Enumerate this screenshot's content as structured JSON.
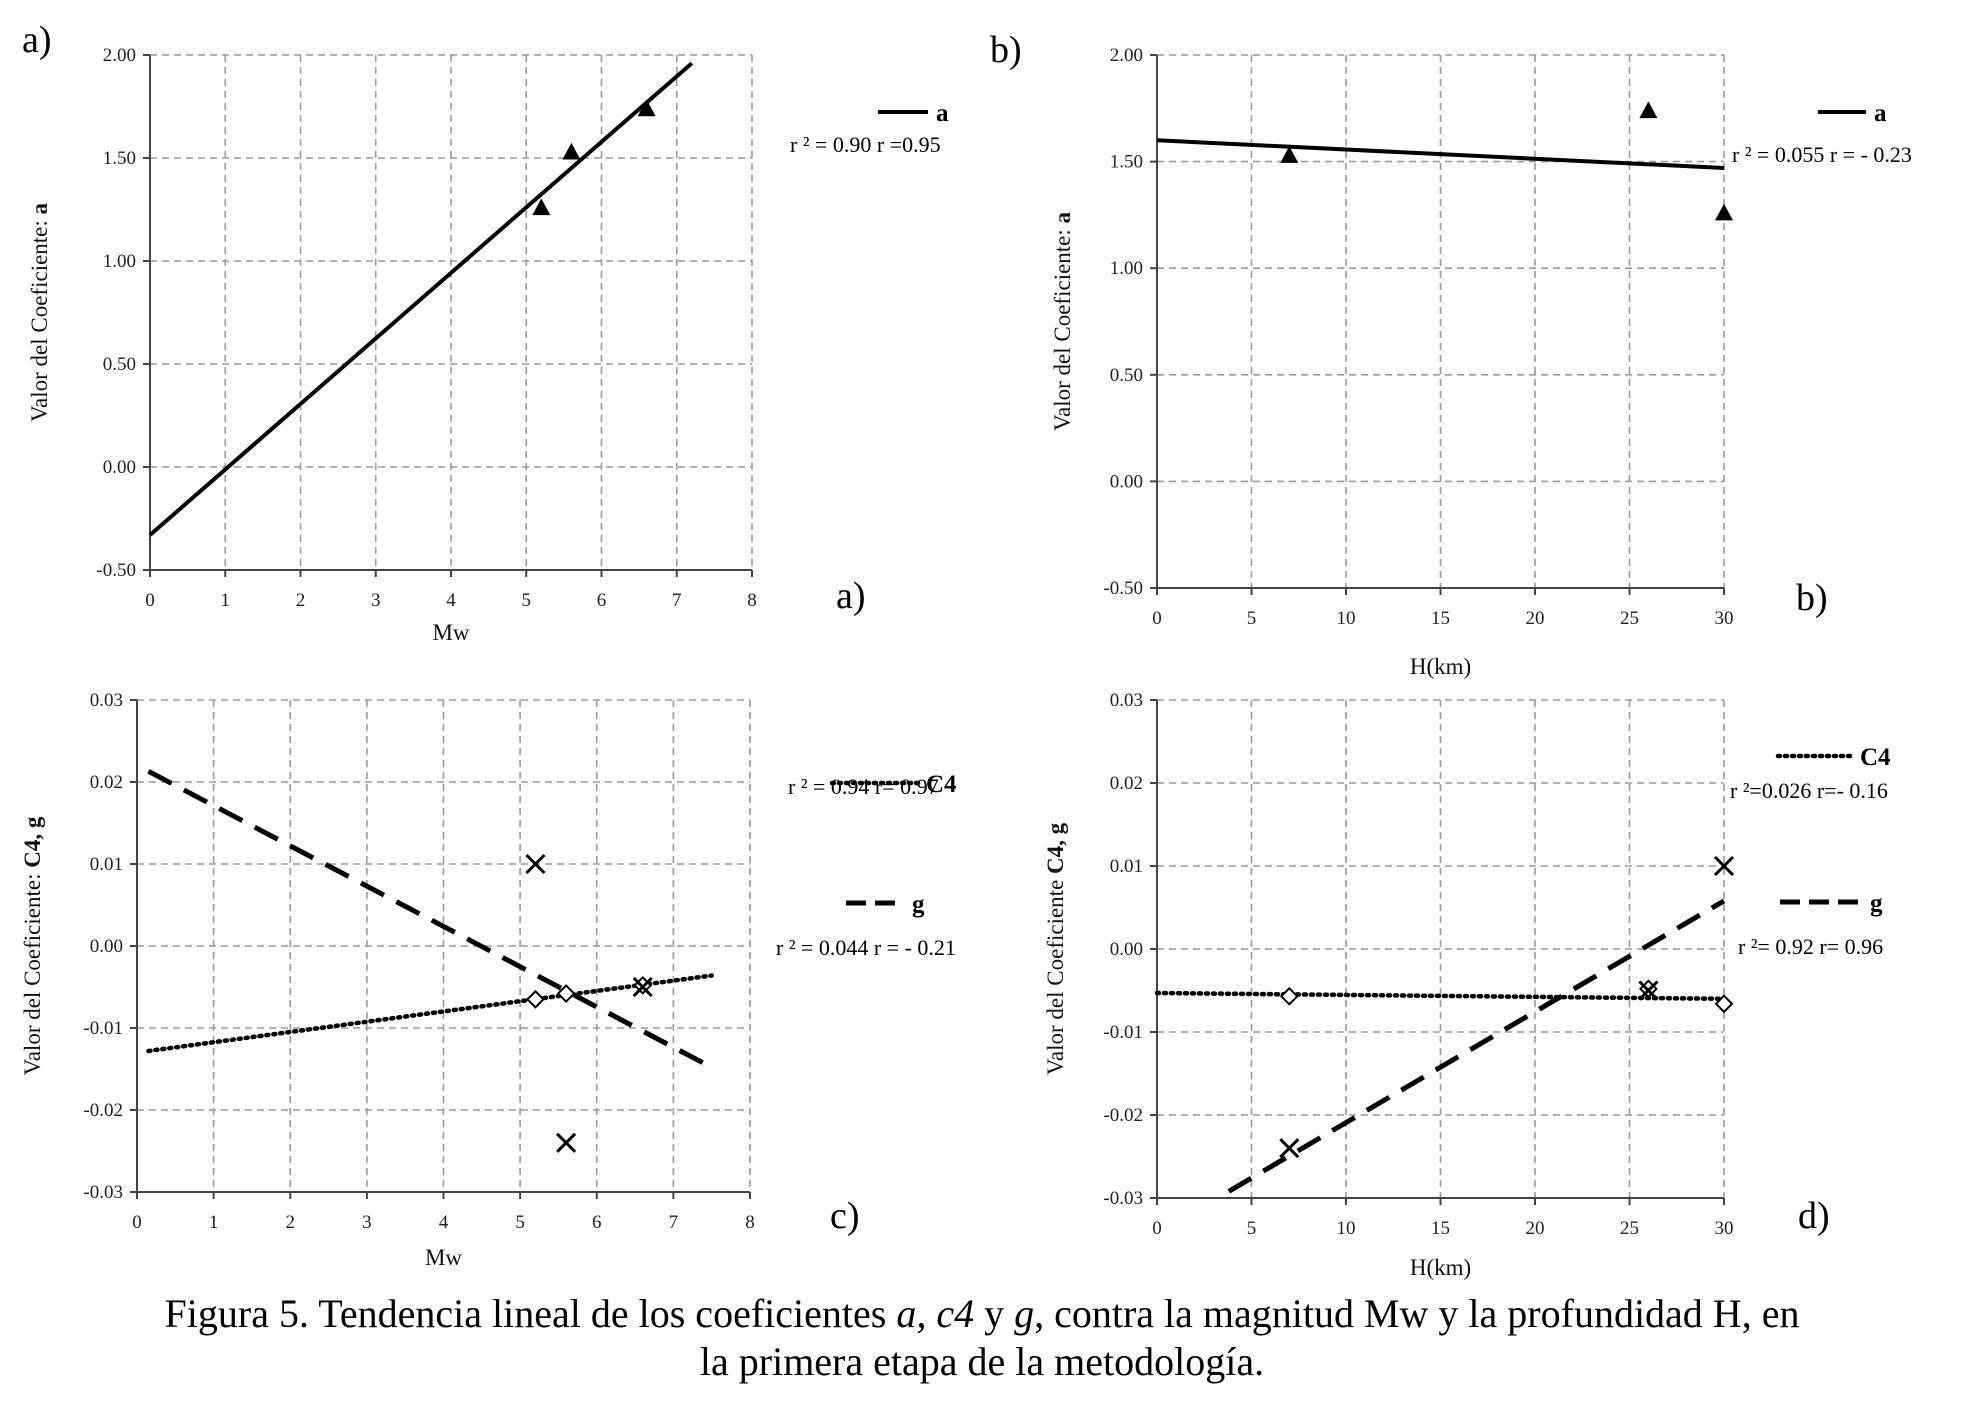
{
  "caption": {
    "line1_before": "Figura 5. Tendencia lineal de los coeficientes ",
    "italic_a": "a,",
    "space1": " ",
    "italic_c4": "c4",
    "middle": " y ",
    "italic_g": "g",
    "line1_after": ", contra la magnitud Mw y la profundidad H, en",
    "line2": "la primera etapa de la metodología."
  },
  "chart_data": [
    {
      "id": "a",
      "type": "scatter",
      "panel_label_top": "a)",
      "panel_label_bottom": "a)",
      "xlabel": "Mw",
      "ylabel_prefix": "Valor del Coeficiente: ",
      "ylabel_bold": "a",
      "xlim": [
        0,
        8
      ],
      "ylim": [
        -0.5,
        2.0
      ],
      "xticks": [
        0,
        1,
        2,
        3,
        4,
        5,
        6,
        7,
        8
      ],
      "xtick_labels": [
        "0",
        "1",
        "2",
        "3",
        "4",
        "5",
        "6",
        "7",
        "8"
      ],
      "yticks": [
        -0.5,
        0,
        0.5,
        1.0,
        1.5,
        2.0
      ],
      "ytick_labels": [
        "-0.50",
        "0.00",
        "0.50",
        "1.00",
        "1.50",
        "2.00"
      ],
      "grid": true,
      "legend_position": "right",
      "series": [
        {
          "name": "a",
          "marker": "triangle",
          "points": [
            [
              5.2,
              1.26
            ],
            [
              5.6,
              1.53
            ],
            [
              6.6,
              1.74
            ]
          ],
          "trend": {
            "style": "solid",
            "from": [
              0,
              -0.33
            ],
            "to": [
              7.2,
              1.96
            ]
          },
          "stats": "r ² = 0.90    r =0.95"
        }
      ]
    },
    {
      "id": "b",
      "type": "scatter",
      "panel_label_top": "b)",
      "panel_label_bottom": "b)",
      "xlabel": "H(km)",
      "ylabel_prefix": "Valor del Coeficiente: ",
      "ylabel_bold": "a",
      "xlim": [
        0,
        30
      ],
      "ylim": [
        -0.5,
        2.0
      ],
      "xticks": [
        0,
        5,
        10,
        15,
        20,
        25,
        30
      ],
      "xtick_labels": [
        "0",
        "5",
        "10",
        "15",
        "20",
        "25",
        "30"
      ],
      "yticks": [
        -0.5,
        0,
        0.5,
        1.0,
        1.5,
        2.0
      ],
      "ytick_labels": [
        "-0.50",
        "0.00",
        "0.50",
        "1.00",
        "1.50",
        "2.00"
      ],
      "grid": true,
      "legend_position": "right",
      "series": [
        {
          "name": "a",
          "marker": "triangle",
          "points": [
            [
              7,
              1.53
            ],
            [
              26,
              1.74
            ],
            [
              30,
              1.26
            ]
          ],
          "trend": {
            "style": "solid",
            "from": [
              0,
              1.6
            ],
            "to": [
              30,
              1.47
            ]
          },
          "stats": "r ² = 0.055    r = - 0.23"
        }
      ]
    },
    {
      "id": "c",
      "type": "scatter",
      "panel_label_bottom": "c)",
      "xlabel": "Mw",
      "ylabel_prefix": "Valor del Coeficiente: ",
      "ylabel_bold": "C4,   g",
      "xlim": [
        0,
        8
      ],
      "ylim": [
        -0.03,
        0.03
      ],
      "xticks": [
        0,
        1,
        2,
        3,
        4,
        5,
        6,
        7,
        8
      ],
      "xtick_labels": [
        "0",
        "1",
        "2",
        "3",
        "4",
        "5",
        "6",
        "7",
        "8"
      ],
      "yticks": [
        -0.03,
        -0.02,
        -0.01,
        0,
        0.01,
        0.02,
        0.03
      ],
      "ytick_labels": [
        "-0.03",
        "-0.02",
        "-0.01",
        "0.00",
        "0.01",
        "0.02",
        "0.03"
      ],
      "grid": true,
      "legend_position": "right",
      "series": [
        {
          "name": "C4",
          "marker": "diamond",
          "points": [
            [
              5.2,
              -0.0065
            ],
            [
              5.6,
              -0.0058
            ],
            [
              6.6,
              -0.0048
            ]
          ],
          "trend": {
            "style": "dotted",
            "from": [
              0.15,
              -0.0128
            ],
            "to": [
              7.5,
              -0.0036
            ]
          },
          "stats": "r ² = 0.94    r= 0.97"
        },
        {
          "name": "g",
          "marker": "x",
          "points": [
            [
              5.2,
              0.01
            ],
            [
              5.6,
              -0.024
            ],
            [
              6.6,
              -0.005
            ]
          ],
          "trend": {
            "style": "dashed",
            "from": [
              0.15,
              0.0213
            ],
            "to": [
              7.5,
              -0.0148
            ]
          },
          "stats": "r ² = 0.044   r = - 0.21"
        }
      ]
    },
    {
      "id": "d",
      "type": "scatter",
      "panel_label_bottom": "d)",
      "xlabel": "H(km)",
      "ylabel_prefix": "Valor del Coeficiente ",
      "ylabel_bold": "C4, g",
      "xlim": [
        0,
        30
      ],
      "ylim": [
        -0.03,
        0.03
      ],
      "xticks": [
        0,
        5,
        10,
        15,
        20,
        25,
        30
      ],
      "xtick_labels": [
        "0",
        "5",
        "10",
        "15",
        "20",
        "25",
        "30"
      ],
      "yticks": [
        -0.03,
        -0.02,
        -0.01,
        0,
        0.01,
        0.02,
        0.03
      ],
      "ytick_labels": [
        "-0.03",
        "-0.02",
        "-0.01",
        "0.00",
        "0.01",
        "0.02",
        "0.03"
      ],
      "grid": true,
      "legend_position": "right",
      "series": [
        {
          "name": "C4",
          "marker": "diamond",
          "points": [
            [
              7,
              -0.0057
            ],
            [
              26,
              -0.0048
            ],
            [
              30,
              -0.0066
            ]
          ],
          "trend": {
            "style": "dotted",
            "from": [
              0,
              -0.0053
            ],
            "to": [
              30,
              -0.006
            ]
          },
          "stats": "r ²=0.026   r=- 0.16"
        },
        {
          "name": "g",
          "marker": "x",
          "points": [
            [
              7,
              -0.024
            ],
            [
              26,
              -0.005
            ],
            [
              30,
              0.01
            ]
          ],
          "trend": {
            "style": "dashed",
            "from": [
              3.8,
              -0.0292
            ],
            "to": [
              30,
              0.0058
            ]
          },
          "stats": "r ²= 0.92    r= 0.96"
        }
      ]
    }
  ]
}
